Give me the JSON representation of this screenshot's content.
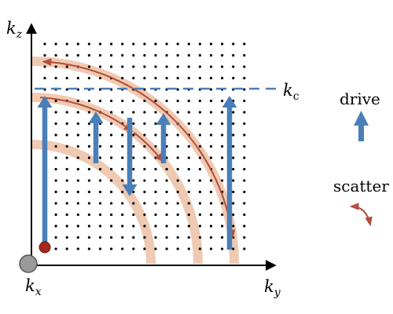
{
  "axes": {
    "y_main": "k",
    "y_sub": "z",
    "x_main": "k",
    "x_sub": "y",
    "origin_main": "k",
    "origin_sub": "x"
  },
  "cutoff": {
    "main": "k",
    "sub": "c"
  },
  "legend": {
    "drive_label": "drive",
    "scatter_label": "scatter"
  },
  "colors": {
    "drive": "#4a7fb8",
    "scatter": "#b34d3c",
    "band": "#efcab2",
    "cutoff_line": "#4a7fb8",
    "start_dot": "#a8281c",
    "origin": "#9a9a9a"
  },
  "grid": {
    "rows": 19,
    "cols": 19
  }
}
